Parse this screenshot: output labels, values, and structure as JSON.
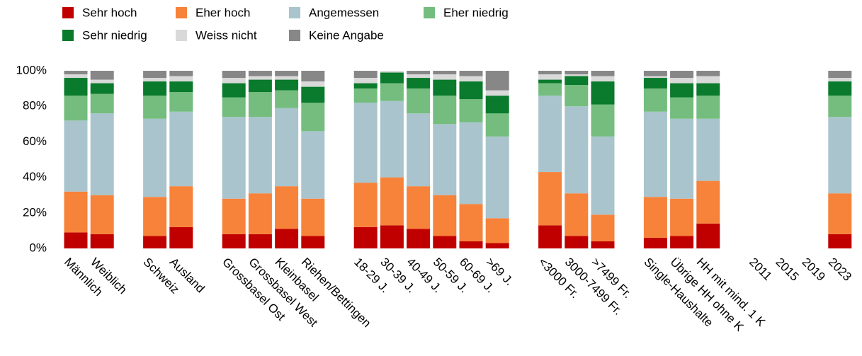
{
  "chart_data": {
    "type": "stacked_bar",
    "categories": [
      "Männlich",
      "Weiblich",
      null,
      "Schweiz",
      "Ausland",
      null,
      "Grossbasel Ost",
      "Grossbasel West",
      "Kleinbasel",
      "Riehen/Bettingen",
      null,
      "18-29 J.",
      "30-39 J.",
      "40-49 J.",
      "50-59 J.",
      "60-69 J.",
      ">69 J.",
      null,
      "<3000 Fr.",
      "3000-7499 Fr.",
      ">7499 Fr.",
      null,
      "Single-Haushalte",
      "Übrige HH ohne K",
      "HH mit mind. 1 K",
      null,
      "2011",
      "2015",
      "2019",
      "2023"
    ],
    "series": [
      {
        "name": "Sehr hoch",
        "color": "#c00000",
        "values": [
          9,
          8,
          null,
          7,
          12,
          null,
          8,
          8,
          11,
          7,
          null,
          12,
          13,
          11,
          7,
          4,
          3,
          null,
          13,
          7,
          4,
          null,
          6,
          7,
          14,
          null,
          null,
          null,
          null,
          8
        ]
      },
      {
        "name": "Eher hoch",
        "color": "#f7823a",
        "values": [
          23,
          22,
          null,
          22,
          23,
          null,
          20,
          23,
          24,
          21,
          null,
          25,
          27,
          24,
          23,
          21,
          14,
          null,
          30,
          24,
          15,
          null,
          23,
          21,
          24,
          null,
          null,
          null,
          null,
          23
        ]
      },
      {
        "name": "Angemessen",
        "color": "#a9c4cc",
        "values": [
          40,
          46,
          null,
          44,
          42,
          null,
          46,
          43,
          44,
          38,
          null,
          45,
          43,
          41,
          40,
          46,
          46,
          null,
          43,
          49,
          44,
          null,
          48,
          45,
          35,
          null,
          null,
          null,
          null,
          43
        ]
      },
      {
        "name": "Eher niedrig",
        "color": "#74bd7e",
        "values": [
          14,
          11,
          null,
          13,
          11,
          null,
          11,
          14,
          10,
          16,
          null,
          8,
          10,
          14,
          16,
          13,
          13,
          null,
          7,
          12,
          18,
          null,
          13,
          12,
          13,
          null,
          null,
          null,
          null,
          12
        ]
      },
      {
        "name": "Sehr niedrig",
        "color": "#0a7a2c",
        "values": [
          10,
          6,
          null,
          8,
          6,
          null,
          8,
          7,
          6,
          9,
          null,
          3,
          6,
          6,
          9,
          10,
          10,
          null,
          2,
          5,
          13,
          null,
          6,
          8,
          7,
          null,
          null,
          null,
          null,
          8
        ]
      },
      {
        "name": "Weiss nicht",
        "color": "#d9d9d9",
        "values": [
          2,
          2,
          null,
          2,
          3,
          null,
          3,
          2,
          2,
          3,
          null,
          3,
          1,
          2,
          3,
          3,
          3,
          null,
          3,
          1,
          3,
          null,
          1,
          3,
          4,
          null,
          null,
          null,
          null,
          2
        ]
      },
      {
        "name": "Keine Angabe",
        "color": "#878787",
        "values": [
          2,
          5,
          null,
          4,
          3,
          null,
          4,
          3,
          3,
          6,
          null,
          4,
          0,
          2,
          2,
          3,
          11,
          null,
          2,
          2,
          3,
          null,
          3,
          4,
          3,
          null,
          null,
          null,
          null,
          4
        ]
      }
    ],
    "ylim": [
      0,
      100
    ],
    "yticks": [
      {
        "value": 0,
        "label": "0%"
      },
      {
        "value": 20,
        "label": "20%"
      },
      {
        "value": 40,
        "label": "40%"
      },
      {
        "value": 60,
        "label": "60%"
      },
      {
        "value": 80,
        "label": "80%"
      },
      {
        "value": 100,
        "label": "100%"
      }
    ],
    "legend": "top-left"
  }
}
